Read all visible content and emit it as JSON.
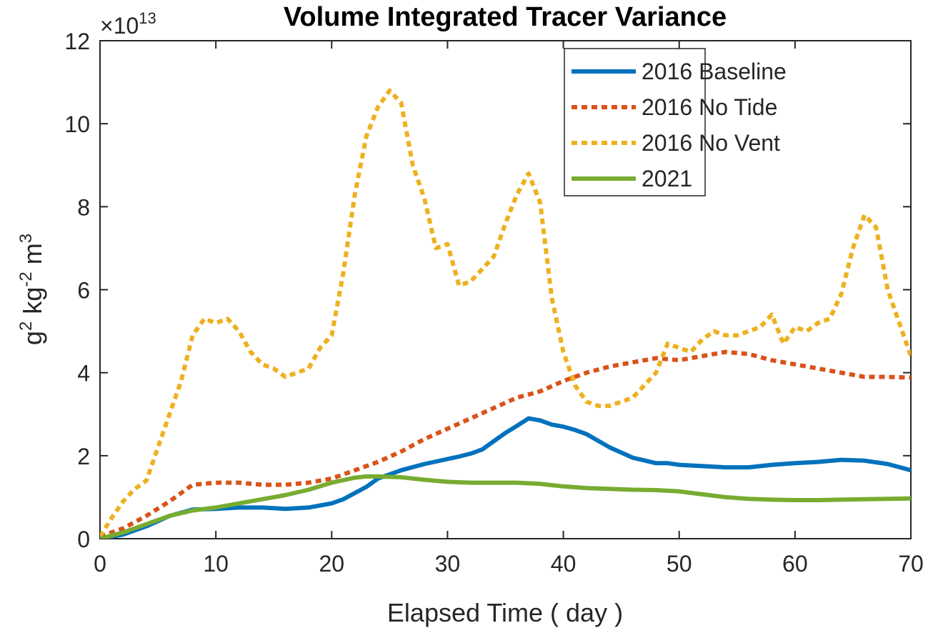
{
  "chart_data": {
    "type": "line",
    "title": "Volume Integrated Tracer Variance",
    "xlabel": "Elapsed Time ( day )",
    "ylabel": {
      "base1": "g",
      "sup1": "2",
      "base2": " kg",
      "sup2": "-2",
      "base3": " m",
      "sup3": "3"
    },
    "y_exponent": {
      "prefix": "×10",
      "power": "13"
    },
    "xlim": [
      0,
      70
    ],
    "ylim": [
      0,
      12
    ],
    "xticks": [
      0,
      10,
      20,
      30,
      40,
      50,
      60,
      70
    ],
    "yticks": [
      0,
      2,
      4,
      6,
      8,
      10,
      12
    ],
    "xtick_labels": [
      "0",
      "10",
      "20",
      "30",
      "40",
      "50",
      "60",
      "70"
    ],
    "ytick_labels": [
      "0",
      "2",
      "4",
      "6",
      "8",
      "10",
      "12"
    ],
    "legend_position": "top-right",
    "series": [
      {
        "name": "2016 Baseline",
        "color": "#0072BD",
        "style": "solid",
        "x": [
          0,
          2,
          4,
          6,
          8,
          10,
          12,
          14,
          16,
          18,
          20,
          21,
          22,
          23,
          24,
          26,
          28,
          30,
          31,
          32,
          33,
          34,
          35,
          36,
          37,
          38,
          39,
          40,
          41,
          42,
          44,
          46,
          48,
          49,
          50,
          52,
          54,
          56,
          58,
          60,
          62,
          64,
          66,
          68,
          70
        ],
        "values": [
          0.0,
          0.1,
          0.3,
          0.55,
          0.7,
          0.72,
          0.75,
          0.75,
          0.72,
          0.75,
          0.85,
          0.95,
          1.1,
          1.25,
          1.45,
          1.65,
          1.8,
          1.92,
          1.98,
          2.05,
          2.15,
          2.35,
          2.55,
          2.72,
          2.9,
          2.85,
          2.75,
          2.7,
          2.62,
          2.52,
          2.2,
          1.95,
          1.82,
          1.82,
          1.78,
          1.75,
          1.72,
          1.72,
          1.78,
          1.82,
          1.85,
          1.9,
          1.88,
          1.8,
          1.65
        ]
      },
      {
        "name": "2016 No Tide",
        "color": "#D95319",
        "style": "dotted",
        "x": [
          0,
          2,
          4,
          6,
          8,
          10,
          12,
          14,
          16,
          18,
          20,
          22,
          24,
          26,
          28,
          30,
          32,
          34,
          36,
          38,
          40,
          42,
          44,
          46,
          48,
          50,
          52,
          54,
          56,
          58,
          60,
          62,
          64,
          66,
          68,
          70
        ],
        "values": [
          0.05,
          0.25,
          0.55,
          0.9,
          1.3,
          1.35,
          1.35,
          1.3,
          1.3,
          1.35,
          1.45,
          1.65,
          1.85,
          2.1,
          2.4,
          2.65,
          2.9,
          3.15,
          3.4,
          3.55,
          3.8,
          4.0,
          4.15,
          4.25,
          4.35,
          4.3,
          4.4,
          4.5,
          4.45,
          4.3,
          4.2,
          4.1,
          4.0,
          3.9,
          3.9,
          3.88
        ]
      },
      {
        "name": "2016 No Vent",
        "color": "#EDB120",
        "style": "dotted",
        "x": [
          0,
          1,
          2,
          3,
          4,
          5,
          6,
          7,
          8,
          9,
          10,
          11,
          12,
          13,
          14,
          15,
          16,
          17,
          18,
          19,
          20,
          21,
          22,
          23,
          24,
          25,
          26,
          27,
          28,
          29,
          30,
          31,
          32,
          33,
          34,
          35,
          36,
          37,
          38,
          39,
          40,
          41,
          42,
          43,
          44,
          45,
          46,
          47,
          48,
          49,
          50,
          51,
          52,
          53,
          54,
          55,
          56,
          57,
          58,
          59,
          60,
          61,
          62,
          63,
          64,
          65,
          66,
          67,
          68,
          69,
          70
        ],
        "values": [
          0.05,
          0.5,
          0.9,
          1.2,
          1.4,
          2.2,
          3.0,
          3.8,
          4.9,
          5.3,
          5.2,
          5.3,
          5.0,
          4.5,
          4.2,
          4.1,
          3.9,
          4.0,
          4.1,
          4.6,
          4.9,
          6.4,
          8.3,
          9.7,
          10.4,
          10.8,
          10.5,
          9.0,
          8.2,
          7.0,
          7.1,
          6.1,
          6.2,
          6.5,
          6.8,
          7.6,
          8.3,
          8.8,
          8.1,
          5.8,
          4.5,
          3.7,
          3.3,
          3.2,
          3.2,
          3.3,
          3.4,
          3.7,
          4.0,
          4.7,
          4.6,
          4.5,
          4.8,
          5.0,
          4.9,
          4.9,
          5.0,
          5.1,
          5.4,
          4.7,
          5.1,
          5.0,
          5.2,
          5.3,
          5.9,
          7.0,
          7.8,
          7.5,
          6.0,
          5.2,
          4.4
        ]
      },
      {
        "name": "2021",
        "color": "#77AC30",
        "style": "solid",
        "x": [
          0,
          2,
          4,
          6,
          8,
          10,
          12,
          14,
          16,
          18,
          20,
          22,
          23,
          24,
          26,
          28,
          30,
          32,
          34,
          36,
          38,
          40,
          42,
          44,
          46,
          48,
          50,
          52,
          54,
          56,
          58,
          60,
          62,
          64,
          66,
          68,
          70
        ],
        "values": [
          0.0,
          0.15,
          0.35,
          0.55,
          0.68,
          0.75,
          0.85,
          0.95,
          1.05,
          1.18,
          1.35,
          1.47,
          1.5,
          1.5,
          1.48,
          1.42,
          1.37,
          1.35,
          1.35,
          1.35,
          1.32,
          1.26,
          1.22,
          1.2,
          1.18,
          1.17,
          1.14,
          1.07,
          1.0,
          0.96,
          0.94,
          0.93,
          0.93,
          0.94,
          0.95,
          0.96,
          0.97
        ]
      }
    ]
  }
}
